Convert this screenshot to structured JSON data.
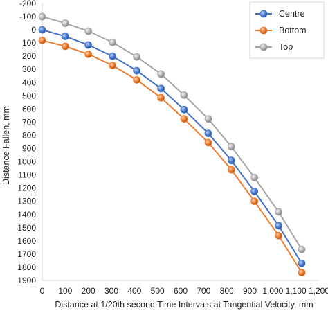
{
  "chart_data": {
    "type": "line",
    "xlabel": "Distance at 1/20th second Time Intervals at Tangential Velocity, mm",
    "ylabel": "Distance Fallen, mm",
    "xlim": [
      0,
      1200
    ],
    "ylim": [
      -200,
      1900
    ],
    "y_inverted": true,
    "x_ticks": [
      "0",
      "100",
      "200",
      "300",
      "400",
      "500",
      "600",
      "700",
      "800",
      "900",
      "1,000",
      "1,100",
      "1,200"
    ],
    "y_ticks": [
      "-200",
      "-100",
      "0",
      "100",
      "200",
      "300",
      "400",
      "500",
      "600",
      "700",
      "800",
      "900",
      "1000",
      "1100",
      "1200",
      "1300",
      "1400",
      "1500",
      "1600",
      "1700",
      "1800",
      "1900"
    ],
    "grid": "none",
    "legend_position": "top-right",
    "series": [
      {
        "name": "Centre",
        "color": "#4472c4",
        "x": [
          0,
          100,
          200,
          305,
          410,
          515,
          615,
          720,
          820,
          920,
          1025,
          1125
        ],
        "y": [
          0,
          50,
          115,
          200,
          310,
          445,
          605,
          785,
          990,
          1225,
          1485,
          1770
        ]
      },
      {
        "name": "Bottom",
        "color": "#ed7d31",
        "x": [
          0,
          100,
          200,
          305,
          410,
          515,
          615,
          720,
          820,
          920,
          1025,
          1125
        ],
        "y": [
          80,
          125,
          185,
          270,
          380,
          515,
          675,
          855,
          1060,
          1300,
          1560,
          1840
        ]
      },
      {
        "name": "Top",
        "color": "#a5a5a5",
        "x": [
          0,
          100,
          200,
          305,
          410,
          515,
          615,
          720,
          820,
          920,
          1025,
          1125
        ],
        "y": [
          -100,
          -50,
          10,
          95,
          205,
          335,
          495,
          675,
          885,
          1120,
          1380,
          1665
        ]
      }
    ]
  }
}
